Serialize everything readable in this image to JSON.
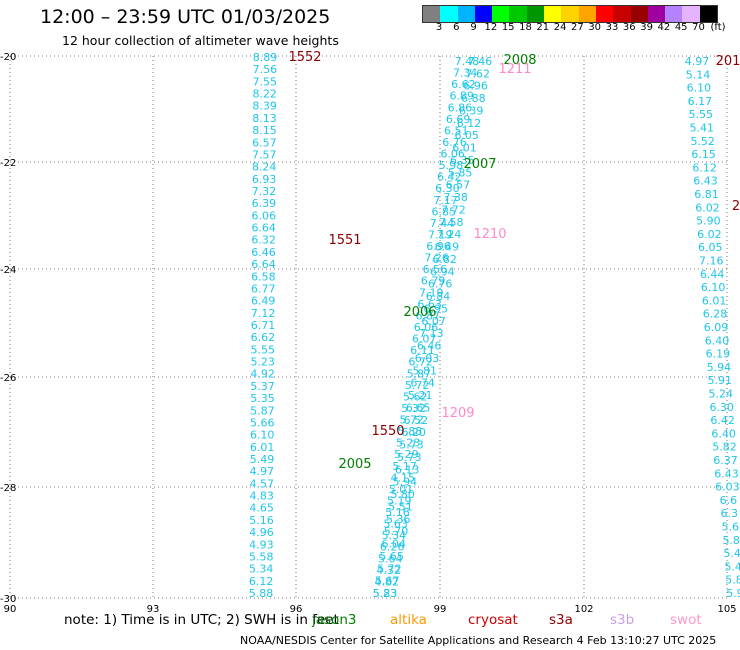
{
  "header": {
    "title": "12:00 – 23:59 UTC 01/03/2025",
    "subtitle": "12 hour collection of altimeter wave heights"
  },
  "scale": {
    "colors": [
      "#808080",
      "#00ffff",
      "#00b4ff",
      "#0000ff",
      "#00ff00",
      "#00c800",
      "#009600",
      "#ffff00",
      "#ffd200",
      "#ffa500",
      "#ff0000",
      "#c80000",
      "#960000",
      "#a000a0",
      "#b482ff",
      "#e6b4ff",
      "#000000"
    ],
    "labels": [
      "3",
      "6",
      "9",
      "12",
      "15",
      "18",
      "21",
      "24",
      "27",
      "30",
      "33",
      "36",
      "39",
      "42",
      "45",
      "70",
      "(ft)"
    ]
  },
  "axes": {
    "x_ticks": [
      "90",
      "93",
      "96",
      "99",
      "102",
      "105"
    ],
    "y_ticks": [
      "-20",
      "-22",
      "-24",
      "-26",
      "-28",
      "-30"
    ]
  },
  "passes": [
    {
      "label": "1552",
      "color": "#8b0000"
    },
    {
      "label": "2008",
      "color": "#008000"
    },
    {
      "label": "1211",
      "color": "#ff88cc"
    },
    {
      "label": "2007",
      "color": "#008000"
    },
    {
      "label": "1551",
      "color": "#8b0000"
    },
    {
      "label": "1210",
      "color": "#ff88cc"
    },
    {
      "label": "2006",
      "color": "#008000"
    },
    {
      "label": "1209",
      "color": "#ff88cc"
    },
    {
      "label": "1550",
      "color": "#8b0000"
    },
    {
      "label": "2005",
      "color": "#008000"
    },
    {
      "label": "201",
      "color": "#8b0000"
    },
    {
      "label": "2",
      "color": "#8b0000"
    }
  ],
  "tracks": {
    "A": [
      "8.89",
      "7.56",
      "7.55",
      "8.22",
      "8.39",
      "8.13",
      "8.15",
      "6.57",
      "7.57",
      "8.24",
      "6.93",
      "7.32",
      "6.39",
      "6.06",
      "6.64",
      "6.32",
      "6.46",
      "6.64",
      "6.58",
      "6.77",
      "6.49",
      "7.12",
      "6.71",
      "6.62",
      "5.55",
      "5.23",
      "4.92",
      "5.37",
      "5.35",
      "5.87",
      "5.66",
      "6.10",
      "6.01",
      "5.49",
      "4.97",
      "4.57",
      "4.83",
      "4.65",
      "5.16",
      "4.96",
      "4.93",
      "5.58",
      "5.34",
      "6.12",
      "5.88"
    ],
    "B": [
      "7.48",
      "7.34",
      "6.62",
      "6.89",
      "6.86",
      "6.69",
      "6.51",
      "6.76",
      "6.06",
      "5.98",
      "6.42",
      "6.30",
      "7.17",
      "6.85",
      "7.44",
      "7.19",
      "6.96",
      "7.26",
      "6.56",
      "6.79",
      "7.19",
      "6.63",
      "6.87",
      "6.06",
      "6.07",
      "6.11",
      "6.72",
      "5.87",
      "5.72",
      "5.62",
      "5.32",
      "5.72",
      "5.88",
      "5.23",
      "5.29",
      "5.17",
      "4.15",
      "5.01",
      "5.19",
      "5.16",
      "5.63",
      "5.34",
      "6.26",
      "5.64",
      "4.32",
      "4.82",
      "5.23"
    ],
    "C": [
      "7.46",
      "7.62",
      "6.96",
      "6.88",
      "6.39",
      "6.12",
      "6.05",
      "6.01",
      "6.35",
      "5.85",
      "6.57",
      "7.38",
      "7.72",
      "7.58",
      "7.24",
      "6.49",
      "6.82",
      "6.94",
      "6.76",
      "6.84",
      "6.95",
      "6.07",
      "7.13",
      "6.46",
      "6.03",
      "5.81",
      "6.74",
      "5.21",
      "6.65",
      "6.52",
      "6.20",
      "5.73",
      "5.73",
      "6.13",
      "5.94",
      "5.80",
      "5.51",
      "5.36",
      "5.70",
      "6.04",
      "5.65",
      "5.72",
      "5.67",
      "5.83"
    ],
    "D": [
      "4.97",
      "5.14",
      "6.10",
      "6.17",
      "5.55",
      "5.41",
      "5.52",
      "6.15",
      "6.12",
      "6.43",
      "6.81",
      "6.02",
      "5.90",
      "6.02",
      "6.05",
      "7.16",
      "6.44",
      "6.10",
      "6.01",
      "6.28",
      "6.09",
      "6.40",
      "6.19",
      "5.94",
      "5.91",
      "5.24",
      "6.30",
      "6.42",
      "6.40",
      "5.82",
      "6.37",
      "6.43",
      "6.03",
      "6.6",
      "6.3",
      "5.6",
      "5.8",
      "5.4",
      "5.4",
      "5.8",
      "5.9"
    ]
  },
  "note": "note:  1) Time is in UTC; 2) SWH is in feet",
  "satellites": [
    {
      "name": "jason3",
      "color": "#008000"
    },
    {
      "name": "altika",
      "color": "#ff9900"
    },
    {
      "name": "cryosat",
      "color": "#cc0000"
    },
    {
      "name": "s3a",
      "color": "#8b0000"
    },
    {
      "name": "s3b",
      "color": "#c8a0e6"
    },
    {
      "name": "swot",
      "color": "#ff99cc"
    }
  ],
  "footer": "NOAA/NESDIS Center for Satellite Applications and Research      4 Feb 13:10:27 UTC 2025"
}
